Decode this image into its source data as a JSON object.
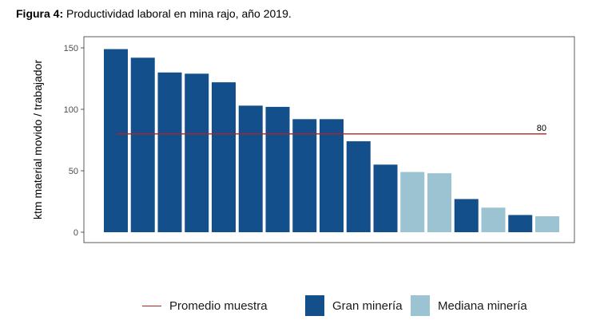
{
  "figure": {
    "label": "Figura 4:",
    "caption": " Productividad laboral en mina rajo, año 2019."
  },
  "colors": {
    "gran": "#134f8a",
    "mediana": "#9cc3d1",
    "average": "#b22222"
  },
  "chart_data": {
    "type": "bar",
    "title": "Figura 4: Productividad laboral en mina rajo, año 2019.",
    "xlabel": "",
    "ylabel": "ktm material movido / trabajador",
    "ylim": [
      0,
      150
    ],
    "yticks": [
      0,
      50,
      100,
      150
    ],
    "grid": false,
    "legend_position": "bottom",
    "values": [
      149,
      142,
      130,
      129,
      122,
      103,
      102,
      92,
      92,
      74,
      55,
      49,
      48,
      27,
      20,
      14,
      13
    ],
    "groups": [
      "Gran minería",
      "Gran minería",
      "Gran minería",
      "Gran minería",
      "Gran minería",
      "Gran minería",
      "Gran minería",
      "Gran minería",
      "Gran minería",
      "Gran minería",
      "Gran minería",
      "Mediana minería",
      "Mediana minería",
      "Gran minería",
      "Mediana minería",
      "Gran minería",
      "Mediana minería"
    ],
    "average": {
      "name": "Promedio muestra",
      "value": 80,
      "label": "80"
    },
    "legend": [
      "Promedio muestra",
      "Gran minería",
      "Mediana minería"
    ]
  }
}
